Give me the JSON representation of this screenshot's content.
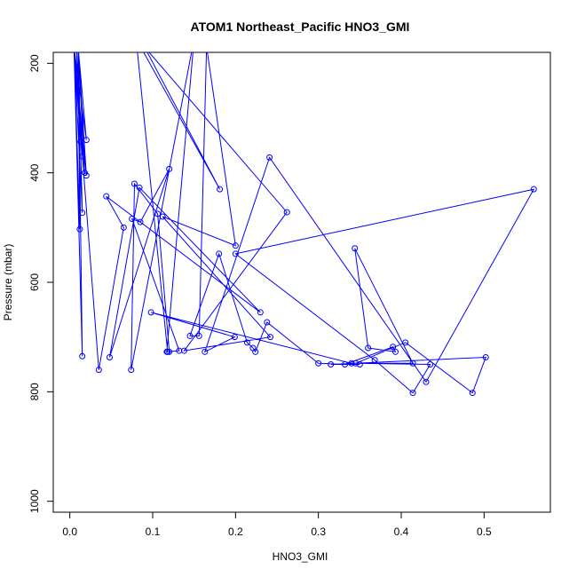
{
  "chart_data": {
    "type": "line",
    "title": "ATOM1 Northeast_Pacific HNO3_GMI",
    "xlabel": "HNO3_GMI",
    "ylabel": "Pressure (mbar)",
    "xlim": [
      -0.02,
      0.58
    ],
    "ylim": [
      1020,
      180
    ],
    "y_reversed": true,
    "xticks": [
      0.0,
      0.1,
      0.2,
      0.3,
      0.4,
      0.5
    ],
    "xtick_labels": [
      "0.0",
      "0.1",
      "0.2",
      "0.3",
      "0.4",
      "0.5"
    ],
    "yticks": [
      200,
      400,
      600,
      800,
      1000
    ],
    "ytick_labels": [
      "200",
      "400",
      "600",
      "800",
      "1000"
    ],
    "grid": false,
    "series_color": "#0000ff",
    "marker": "open-circle",
    "series": [
      {
        "x": [
          0.005,
          0.015,
          0.01,
          0.02,
          0.005,
          0.013,
          0.008,
          0.015,
          0.005,
          0.018,
          0.01,
          0.02,
          0.005,
          0.015,
          0.01,
          0.012,
          0.005,
          0.035,
          0.065,
          0.044,
          0.23,
          0.084,
          0.048,
          0.12,
          0.085,
          0.075,
          0.132,
          0.117,
          0.15,
          0.074,
          0.078,
          0.106,
          0.12,
          0.118,
          0.08,
          0.181,
          0.09,
          0.262,
          0.138,
          0.242,
          0.112,
          0.2,
          0.165,
          0.156,
          0.145,
          0.18,
          0.214,
          0.221,
          0.224,
          0.238,
          0.3,
          0.332,
          0.39,
          0.393,
          0.36,
          0.344,
          0.414,
          0.34,
          0.098,
          0.199,
          0.163,
          0.241,
          0.43,
          0.56,
          0.2,
          0.368,
          0.414,
          0.435,
          0.345,
          0.405,
          0.486,
          0.502,
          0.315,
          0.35
        ],
        "y": [
          170,
          735,
          170,
          340,
          170,
          343,
          170,
          370,
          170,
          400,
          170,
          405,
          170,
          473,
          170,
          503,
          170,
          760,
          500,
          443,
          655,
          427,
          737,
          393,
          490,
          484,
          725,
          727,
          155,
          760,
          420,
          475,
          727,
          727,
          155,
          430,
          170,
          472,
          725,
          700,
          480,
          533,
          170,
          698,
          698,
          548,
          710,
          720,
          727,
          673,
          748,
          750,
          718,
          727,
          720,
          538,
          748,
          748,
          655,
          700,
          727,
          372,
          782,
          430,
          548,
          742,
          802,
          750,
          748,
          710,
          802,
          737,
          750,
          750
        ]
      }
    ]
  }
}
